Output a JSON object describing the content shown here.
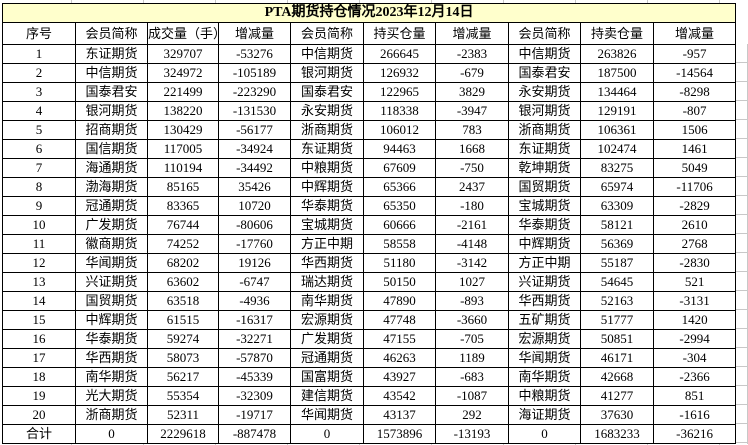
{
  "title": "PTA期货持仓情况2023年12月14日",
  "colors": {
    "title_bg": "#FFFFCC",
    "border": "#000000",
    "gridline": "#C8C8C8",
    "text": "#000000"
  },
  "table": {
    "headers": [
      "序号",
      "会员简称",
      "成交量（手）",
      "增减量",
      "会员简称",
      "持买仓量",
      "增减量",
      "会员简称",
      "持卖仓量",
      "增减量"
    ],
    "rows": [
      [
        "1",
        "东证期货",
        "329707",
        "-53276",
        "中信期货",
        "266645",
        "-2383",
        "中信期货",
        "263826",
        "-957"
      ],
      [
        "2",
        "中信期货",
        "324972",
        "-105189",
        "银河期货",
        "126932",
        "-679",
        "国泰君安",
        "187500",
        "-14564"
      ],
      [
        "3",
        "国泰君安",
        "221499",
        "-223290",
        "国泰君安",
        "122965",
        "3829",
        "永安期货",
        "134464",
        "-8298"
      ],
      [
        "4",
        "银河期货",
        "138220",
        "-131530",
        "永安期货",
        "118338",
        "-3947",
        "银河期货",
        "129191",
        "-807"
      ],
      [
        "5",
        "招商期货",
        "130429",
        "-56177",
        "浙商期货",
        "106012",
        "783",
        "浙商期货",
        "106361",
        "1506"
      ],
      [
        "6",
        "国信期货",
        "117005",
        "-34924",
        "东证期货",
        "94463",
        "1668",
        "东证期货",
        "102474",
        "1461"
      ],
      [
        "7",
        "海通期货",
        "110194",
        "-34492",
        "中粮期货",
        "67609",
        "-750",
        "乾坤期货",
        "83275",
        "5049"
      ],
      [
        "8",
        "渤海期货",
        "85165",
        "35426",
        "中辉期货",
        "65366",
        "2437",
        "国贸期货",
        "65974",
        "-11706"
      ],
      [
        "9",
        "冠通期货",
        "83365",
        "10720",
        "华泰期货",
        "65350",
        "-180",
        "宝城期货",
        "63309",
        "-2829"
      ],
      [
        "10",
        "广发期货",
        "76744",
        "-80606",
        "宝城期货",
        "60666",
        "-2161",
        "华泰期货",
        "58121",
        "2610"
      ],
      [
        "11",
        "徽商期货",
        "74252",
        "-17760",
        "方正中期",
        "58558",
        "-4148",
        "中辉期货",
        "56369",
        "2768"
      ],
      [
        "12",
        "华闻期货",
        "68202",
        "19126",
        "华西期货",
        "51180",
        "-3142",
        "方正中期",
        "55187",
        "-2830"
      ],
      [
        "13",
        "兴证期货",
        "63602",
        "-6747",
        "瑞达期货",
        "50150",
        "1027",
        "兴证期货",
        "54645",
        "521"
      ],
      [
        "14",
        "国贸期货",
        "63518",
        "-4936",
        "南华期货",
        "47890",
        "-893",
        "华西期货",
        "52163",
        "-3131"
      ],
      [
        "15",
        "中辉期货",
        "61515",
        "-16317",
        "宏源期货",
        "47748",
        "-3660",
        "五矿期货",
        "51777",
        "1420"
      ],
      [
        "16",
        "华泰期货",
        "59274",
        "-32271",
        "广发期货",
        "47155",
        "-705",
        "宏源期货",
        "50851",
        "-2994"
      ],
      [
        "17",
        "华西期货",
        "58073",
        "-57870",
        "冠通期货",
        "46263",
        "1189",
        "华闻期货",
        "46171",
        "-304"
      ],
      [
        "18",
        "南华期货",
        "56217",
        "-45339",
        "国富期货",
        "43927",
        "-683",
        "南华期货",
        "42668",
        "-2366"
      ],
      [
        "19",
        "光大期货",
        "55354",
        "-32309",
        "建信期货",
        "43542",
        "-1087",
        "中粮期货",
        "41277",
        "851"
      ],
      [
        "20",
        "浙商期货",
        "52311",
        "-19717",
        "华闻期货",
        "43137",
        "292",
        "海证期货",
        "37630",
        "-1616"
      ]
    ],
    "total_row": [
      "合计",
      "0",
      "2229618",
      "-887478",
      "0",
      "1573896",
      "-13193",
      "0",
      "1683233",
      "-36216"
    ]
  }
}
